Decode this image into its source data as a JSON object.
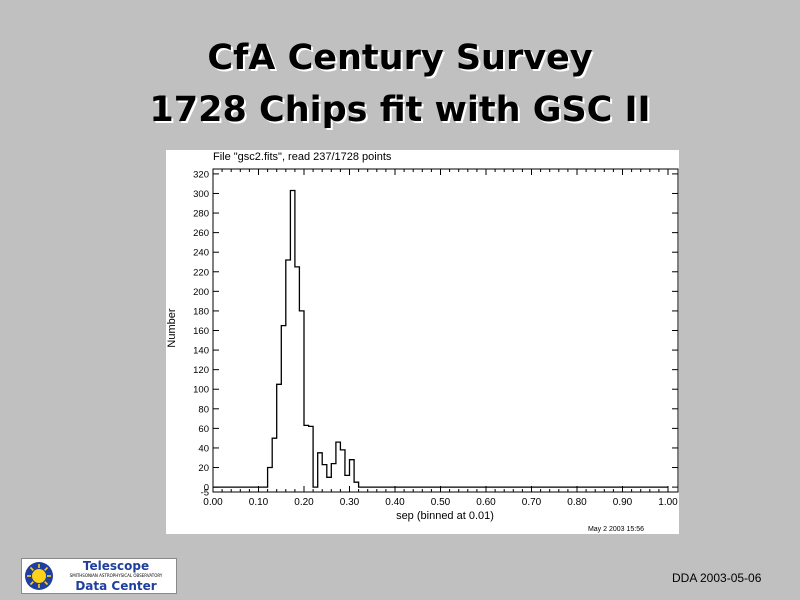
{
  "slide": {
    "title_line1": "CfA Century Survey",
    "title_line2": "1728 Chips fit with GSC II",
    "footer_date": "DDA 2003-05-06"
  },
  "logo": {
    "line1": "Telescope",
    "line2": "SMITHSONIAN ASTROPHYSICAL OBSERVATORY",
    "line3": "Data Center"
  },
  "chart_data": {
    "type": "histogram",
    "header": "File \"gsc2.fits\", read 237/1728 points",
    "xlabel": "sep (binned at 0.01)",
    "ylabel": "Number",
    "timestamp": "May 2 2003 15:56",
    "xlim": [
      0.0,
      1.0
    ],
    "ylim": [
      -5,
      325
    ],
    "x_ticks": [
      "0.00",
      "0.10",
      "0.20",
      "0.30",
      "0.40",
      "0.50",
      "0.60",
      "0.70",
      "0.80",
      "0.90",
      "1.00"
    ],
    "y_ticks": [
      "-5",
      "0",
      "20",
      "40",
      "60",
      "80",
      "100",
      "120",
      "140",
      "160",
      "180",
      "200",
      "220",
      "240",
      "260",
      "280",
      "300",
      "320"
    ],
    "bin_width": 0.01,
    "bins": [
      {
        "x": 0.12,
        "y": 20
      },
      {
        "x": 0.13,
        "y": 50
      },
      {
        "x": 0.14,
        "y": 105
      },
      {
        "x": 0.15,
        "y": 165
      },
      {
        "x": 0.16,
        "y": 232
      },
      {
        "x": 0.17,
        "y": 303
      },
      {
        "x": 0.18,
        "y": 225
      },
      {
        "x": 0.19,
        "y": 180
      },
      {
        "x": 0.2,
        "y": 63
      },
      {
        "x": 0.21,
        "y": 62
      },
      {
        "x": 0.22,
        "y": 0
      },
      {
        "x": 0.23,
        "y": 35
      },
      {
        "x": 0.24,
        "y": 23
      },
      {
        "x": 0.25,
        "y": 10
      },
      {
        "x": 0.26,
        "y": 24
      },
      {
        "x": 0.27,
        "y": 46
      },
      {
        "x": 0.28,
        "y": 38
      },
      {
        "x": 0.29,
        "y": 12
      },
      {
        "x": 0.3,
        "y": 28
      },
      {
        "x": 0.31,
        "y": 5
      },
      {
        "x": 0.32,
        "y": 0
      }
    ]
  }
}
